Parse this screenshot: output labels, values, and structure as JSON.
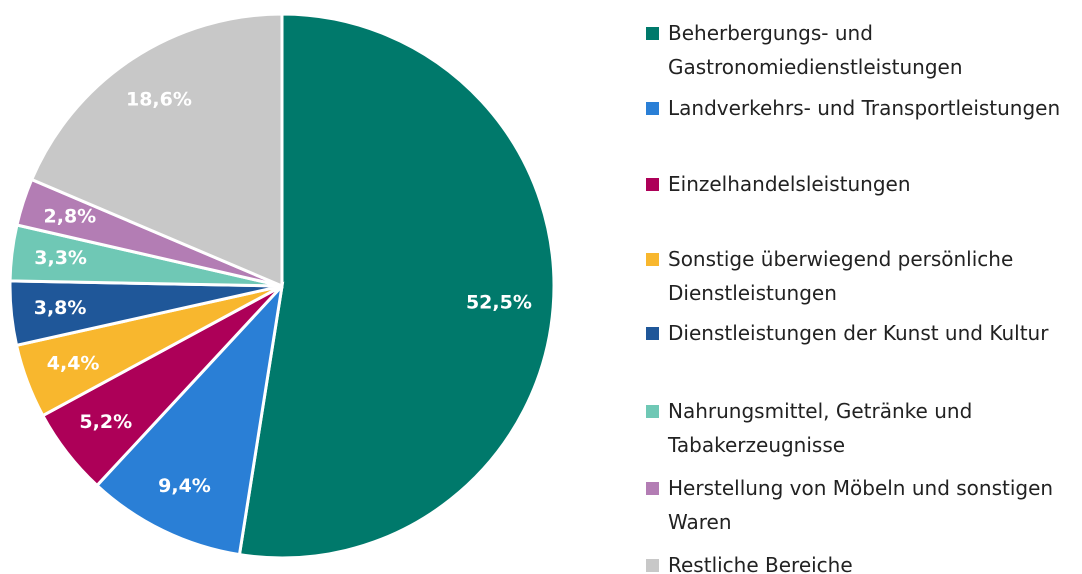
{
  "chart_data": {
    "type": "pie",
    "categories": [
      "Beherbergungs- und Gastronomiedienstleistungen",
      "Landverkehrs- und Transportleistungen",
      "Einzelhandelsleistungen",
      "Sonstige überwiegend persönliche Dienstleistungen",
      "Dienstleistungen der Kunst und Kultur",
      "Nahrungsmittel, Getränke und Tabakerzeugnisse",
      "Herstellung von Möbeln und sonstigen Waren",
      "Restliche Bereiche"
    ],
    "values": [
      52.5,
      9.4,
      5.2,
      4.4,
      3.8,
      3.3,
      2.8,
      18.6
    ],
    "value_labels": [
      "52,5%",
      "9,4%",
      "5,2%",
      "4,4%",
      "3,8%",
      "3,3%",
      "2,8%",
      "18,6%"
    ],
    "colors": [
      "#00796B",
      "#2A7FD6",
      "#AD0058",
      "#F8B72E",
      "#1F5799",
      "#6FC8B5",
      "#B37DB4",
      "#C8C8C8"
    ],
    "legend": "right"
  }
}
